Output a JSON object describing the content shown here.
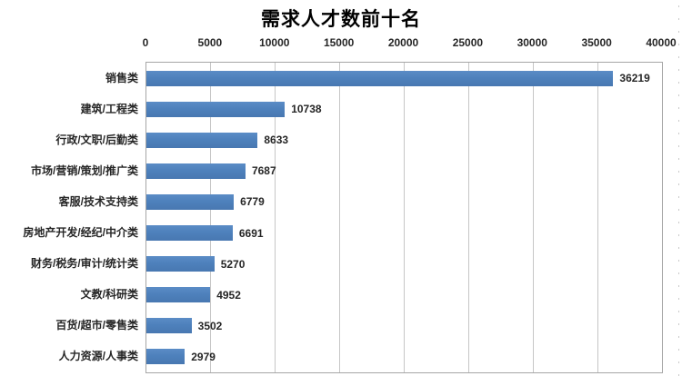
{
  "chart_data": {
    "type": "bar",
    "orientation": "horizontal",
    "title": "需求人才数前十名",
    "categories": [
      "销售类",
      "建筑/工程类",
      "行政/文职/后勤类",
      "市场/营销/策划/推广类",
      "客服/技术支持类",
      "房地产开发/经纪/中介类",
      "财务/税务/审计/统计类",
      "文教/科研类",
      "百货/超市/零售类",
      "人力资源/人事类"
    ],
    "values": [
      36219,
      10738,
      8633,
      7687,
      6779,
      6691,
      5270,
      4952,
      3502,
      2979
    ],
    "x_ticks": [
      0,
      5000,
      10000,
      15000,
      20000,
      25000,
      30000,
      35000,
      40000
    ],
    "xlim": [
      0,
      40000
    ],
    "axis_position": "top",
    "data_labels": true,
    "grid": true,
    "legend": "none",
    "bar_color": "#4E81BC",
    "gridline_color": "#C6C6C6",
    "plot_border_color": "#A6A6A6",
    "label_color": "#262626",
    "title_color": "#000000"
  }
}
